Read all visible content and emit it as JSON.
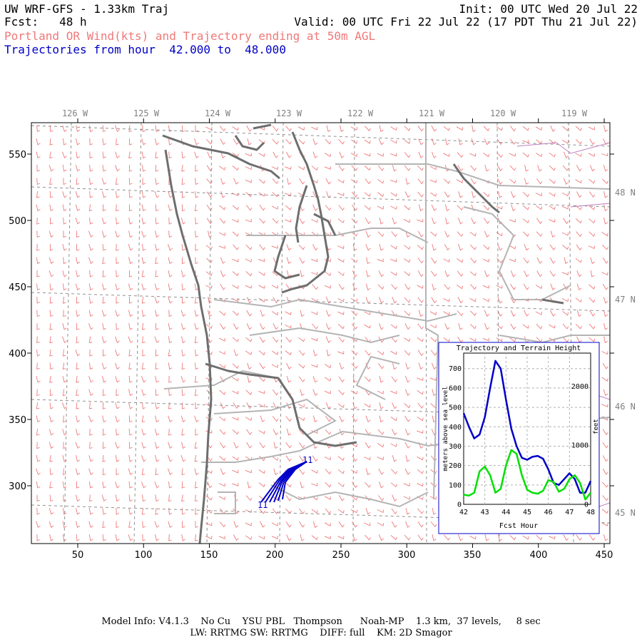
{
  "header": {
    "line1_left": "UW WRF-GFS - 1.33km Traj",
    "line2_left": "Fcst:   48 h",
    "line1_right": "Init: 00 UTC Wed 20 Jul 22",
    "line2_right": "Valid: 00 UTC Fri 22 Jul 22 (17 PDT Thu 21 Jul 22)",
    "subtitle": "Portland OR Wind(kts) and Trajectory ending at 50m AGL",
    "subtitle2": "Trajectories from hour  42.000 to  48.000"
  },
  "map": {
    "lon_labels": [
      "126 W",
      "125 W",
      "124 W",
      "123 W",
      "122 W",
      "121 W",
      "120 W",
      "119 W"
    ],
    "lat_labels": [
      "48 N",
      "47 N",
      "46 N",
      "45 N"
    ],
    "x_ticks": [
      "50",
      "100",
      "150",
      "200",
      "250",
      "300",
      "350",
      "400",
      "450"
    ],
    "y_ticks": [
      "550",
      "500",
      "450",
      "400",
      "350",
      "300"
    ],
    "trajectory_labels": [
      "11",
      "11"
    ],
    "colors": {
      "wind_barb": "#f07878",
      "coast": "#6e6e6e",
      "border": "#b4b4b4",
      "traj": "#0000c8",
      "county": "#c080c0"
    }
  },
  "inset": {
    "title": "Trajectory and Terrain Height",
    "xlabel": "Fcst Hour",
    "ylabel_left": "meters above sea level",
    "ylabel_right": "feet",
    "left_ticks": [
      "0",
      "100",
      "200",
      "300",
      "400",
      "500",
      "600",
      "700"
    ],
    "right_ticks": [
      "0",
      "1000",
      "2000"
    ],
    "x_ticks": [
      "42",
      "43",
      "44",
      "45",
      "46",
      "47",
      "48"
    ]
  },
  "chart_data": {
    "type": "line",
    "title": "Trajectory and Terrain Height",
    "xlabel": "Fcst Hour",
    "ylabel": "meters above sea level",
    "xlim": [
      42,
      48
    ],
    "ylim": [
      0,
      780
    ],
    "series": [
      {
        "color": "#0000c8",
        "x": [
          42,
          42.25,
          42.5,
          42.75,
          43,
          43.25,
          43.5,
          43.75,
          44,
          44.25,
          44.5,
          44.75,
          45,
          45.25,
          45.5,
          45.75,
          46,
          46.25,
          46.5,
          46.75,
          47,
          47.25,
          47.5,
          47.75,
          48
        ],
        "y": [
          470,
          400,
          340,
          360,
          450,
          600,
          740,
          700,
          540,
          390,
          300,
          240,
          230,
          245,
          250,
          235,
          180,
          110,
          100,
          130,
          160,
          130,
          60,
          60,
          120
        ]
      },
      {
        "color": "#00e000",
        "x": [
          42,
          42.25,
          42.5,
          42.75,
          43,
          43.25,
          43.5,
          43.75,
          44,
          44.25,
          44.5,
          44.75,
          45,
          45.25,
          45.5,
          45.75,
          46,
          46.25,
          46.5,
          46.75,
          47,
          47.25,
          47.5,
          47.75,
          48
        ],
        "y": [
          50,
          45,
          60,
          170,
          195,
          150,
          60,
          80,
          200,
          280,
          260,
          150,
          75,
          60,
          55,
          70,
          125,
          115,
          65,
          80,
          130,
          150,
          110,
          25,
          60
        ]
      }
    ]
  },
  "footer": {
    "line1": "Model Info: V4.1.3    No Cu    YSU PBL   Thompson      Noah-MP    1.3 km,  37 levels,     8 sec",
    "line2": "LW: RRTMG SW: RRTMG    DIFF: full    KM: 2D Smagor"
  }
}
